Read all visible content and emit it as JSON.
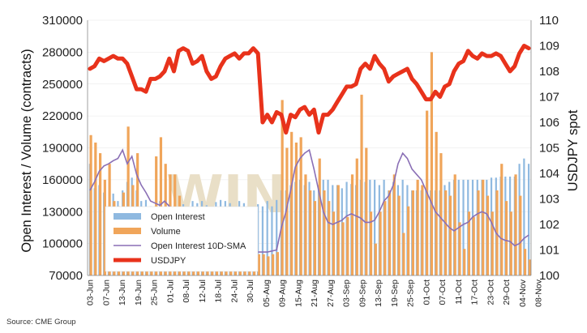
{
  "chart_data": {
    "type": "bar",
    "title": "",
    "source": "Source: CME Group",
    "ylabel_left": "Open Interest / Volume (contracts)",
    "ylabel_right": "USDJPY spot",
    "ylim_left": [
      70000,
      310000
    ],
    "ylim_right": [
      100,
      110
    ],
    "left_ticks": [
      "310000",
      "280000",
      "250000",
      "220000",
      "190000",
      "160000",
      "130000",
      "100000",
      "70000"
    ],
    "right_ticks": [
      "110",
      "109",
      "108",
      "107",
      "106",
      "105",
      "104",
      "103",
      "102",
      "101",
      "100"
    ],
    "x_labels": [
      "03-Jun",
      "07-Jun",
      "13-Jun",
      "19-Jun",
      "25-Jun",
      "01-Jul",
      "08-Jul",
      "12-Jul",
      "18-Jul",
      "24-Jul",
      "30-Jul",
      "05-Aug",
      "09-Aug",
      "15-Aug",
      "21-Aug",
      "27-Aug",
      "03-Sep",
      "09-Sep",
      "13-Sep",
      "19-Sep",
      "25-Sep",
      "01-Oct",
      "07-Oct",
      "11-Oct",
      "17-Oct",
      "23-Oct",
      "29-Oct",
      "04-Nov",
      "08-Nov"
    ],
    "legend": {
      "placement": "bottom-left",
      "entries": [
        {
          "key": "open_interest",
          "label": "Open Interest"
        },
        {
          "key": "volume",
          "label": "Volume"
        },
        {
          "key": "oi_sma",
          "label": "Open Interest 10D-SMA"
        },
        {
          "key": "usdjpy",
          "label": "USDJPY"
        }
      ]
    },
    "colors": {
      "open_interest": "#8fb9e0",
      "volume": "#f0a55a",
      "oi_sma": "#8a6fb5",
      "usdjpy": "#e8321b",
      "watermark": "#e9dfc7"
    },
    "watermark_text": "WIN",
    "series": [
      {
        "name": "Open Interest",
        "axis": "left",
        "values": [
          175000,
          152000,
          155000,
          148000,
          135000,
          147000,
          140000,
          150000,
          158000,
          162000,
          150000,
          140000,
          141000,
          135000,
          135000,
          140000,
          132000,
          137000,
          130000,
          128000,
          137000,
          134000,
          140000,
          138000,
          140000,
          136000,
          133000,
          139000,
          141000,
          140000,
          138000,
          133000,
          140000,
          138000,
          134000,
          130000,
          137000,
          135000,
          140000,
          135000,
          141000,
          150000,
          150000,
          155000,
          158000,
          160000,
          155000,
          158000,
          150000,
          155000,
          160000,
          160000,
          155000,
          155000,
          152000,
          158000,
          156000,
          155000,
          160000,
          158000,
          160000,
          160000,
          155000,
          160000,
          150000,
          158000,
          155000,
          160000,
          155000,
          150000,
          150000,
          150000,
          150000,
          150000,
          150000,
          150000,
          155000,
          158000,
          160000,
          160000,
          160000,
          160000,
          160000,
          160000,
          160000,
          160000,
          162000,
          162000,
          163000,
          163000,
          163000,
          163000,
          175000,
          180000,
          175000
        ]
      },
      {
        "name": "Volume",
        "axis": "left",
        "values": [
          202000,
          195000,
          185000,
          160000,
          175000,
          140000,
          135000,
          148000,
          210000,
          155000,
          185000,
          125000,
          112000,
          130000,
          182000,
          200000,
          175000,
          165000,
          165000,
          145000,
          118000,
          100000,
          130000,
          120000,
          115000,
          105000,
          100000,
          115000,
          105000,
          100000,
          95000,
          88000,
          92000,
          90000,
          88000,
          88000,
          90000,
          90000,
          88000,
          90000,
          92000,
          235000,
          190000,
          205000,
          195000,
          200000,
          165000,
          150000,
          140000,
          180000,
          150000,
          140000,
          130000,
          155000,
          120000,
          125000,
          165000,
          180000,
          240000,
          190000,
          130000,
          100000,
          130000,
          140000,
          150000,
          165000,
          145000,
          110000,
          135000,
          150000,
          160000,
          155000,
          225000,
          280000,
          205000,
          185000,
          150000,
          145000,
          165000,
          120000,
          95000,
          130000,
          125000,
          150000,
          160000,
          145000,
          130000,
          150000,
          175000,
          140000,
          130000,
          165000,
          145000,
          95000,
          85000
        ]
      },
      {
        "name": "Open Interest 10D-SMA",
        "axis": "left",
        "values": [
          150000,
          158000,
          168000,
          173000,
          175000,
          178000,
          180000,
          188000,
          175000,
          182000,
          165000,
          155000,
          148000,
          140000,
          138000,
          136000,
          140000,
          135000,
          132000,
          128000,
          130000,
          126000,
          124000,
          120000,
          118000,
          115000,
          112000,
          110000,
          106000,
          103000,
          100000,
          98000,
          96000,
          95000,
          94000,
          93000,
          92000,
          92000,
          92000,
          93000,
          94000,
          115000,
          130000,
          150000,
          172000,
          180000,
          185000,
          188000,
          170000,
          150000,
          130000,
          120000,
          118000,
          120000,
          122000,
          126000,
          128000,
          126000,
          124000,
          120000,
          120000,
          122000,
          130000,
          140000,
          145000,
          155000,
          175000,
          185000,
          180000,
          170000,
          165000,
          160000,
          150000,
          140000,
          130000,
          125000,
          120000,
          115000,
          112000,
          115000,
          118000,
          120000,
          125000,
          128000,
          130000,
          128000,
          120000,
          110000,
          105000,
          103000,
          102000,
          98000,
          100000,
          105000,
          108000
        ]
      },
      {
        "name": "USDJPY",
        "axis": "right",
        "values": [
          108.1,
          108.2,
          108.5,
          108.4,
          108.5,
          108.6,
          108.5,
          108.5,
          108.3,
          107.8,
          107.3,
          107.3,
          107.2,
          107.7,
          107.7,
          107.8,
          108.0,
          108.5,
          108.0,
          108.8,
          108.9,
          108.8,
          108.3,
          108.4,
          108.6,
          108.0,
          107.7,
          107.8,
          108.2,
          108.5,
          108.6,
          108.7,
          108.5,
          108.7,
          108.7,
          108.9,
          108.7,
          106.0,
          106.3,
          106.0,
          106.4,
          106.3,
          105.6,
          106.3,
          106.2,
          106.5,
          106.6,
          106.3,
          106.5,
          105.6,
          106.3,
          106.3,
          106.5,
          106.8,
          107.1,
          107.4,
          107.4,
          107.5,
          108.1,
          108.3,
          108.1,
          108.6,
          108.3,
          108.1,
          107.6,
          107.8,
          107.9,
          108.0,
          108.1,
          107.7,
          107.5,
          107.2,
          106.9,
          106.9,
          107.2,
          107.0,
          107.4,
          107.5,
          108.0,
          108.3,
          108.4,
          108.8,
          108.6,
          108.5,
          108.7,
          108.6,
          108.6,
          108.7,
          108.6,
          108.3,
          108.0,
          108.2,
          108.7,
          109.0,
          108.9
        ]
      }
    ]
  }
}
